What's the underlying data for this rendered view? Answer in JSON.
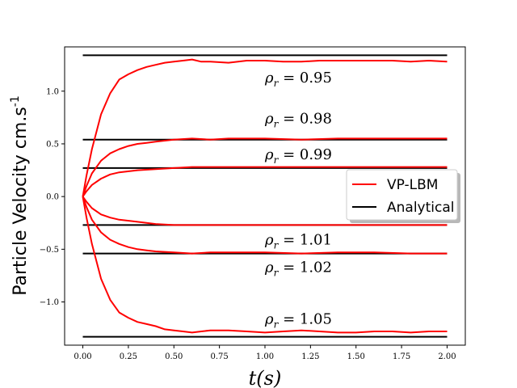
{
  "chart_data": {
    "type": "line",
    "title": "",
    "xlabel": "t(s)",
    "ylabel": "Particle Velocity cm.s",
    "ylabel_exponent": "-1",
    "xlim": [
      -0.1,
      2.1
    ],
    "ylim": [
      -1.41,
      1.42
    ],
    "xticks": [
      "0.00",
      "0.25",
      "0.50",
      "0.75",
      "1.00",
      "1.25",
      "1.50",
      "1.75",
      "2.00"
    ],
    "yticks": [
      "1.0",
      "0.5",
      "0.0",
      "−0.5",
      "−1.0"
    ],
    "legend": {
      "placement": "center-right",
      "entries": [
        {
          "label": "VP-LBM",
          "color": "#ff0000"
        },
        {
          "label": "Analytical",
          "color": "#000000"
        }
      ]
    },
    "annotations": [
      {
        "text": "ρr = 0.95",
        "x": 1.0,
        "y": 1.13
      },
      {
        "text": "ρr = 0.98",
        "x": 1.0,
        "y": 0.74
      },
      {
        "text": "ρr = 0.99",
        "x": 1.0,
        "y": 0.4
      },
      {
        "text": "ρr = 1.01",
        "x": 1.0,
        "y": -0.41
      },
      {
        "text": "ρr = 1.02",
        "x": 1.0,
        "y": -0.67
      },
      {
        "text": "ρr = 1.05",
        "x": 1.0,
        "y": -1.16
      }
    ],
    "series": [
      {
        "legend": "Analytical",
        "color": "#000000",
        "x": [
          0,
          2.0
        ],
        "y": [
          1.34,
          1.34
        ]
      },
      {
        "legend": "Analytical",
        "color": "#000000",
        "x": [
          0,
          2.0
        ],
        "y": [
          0.54,
          0.54
        ]
      },
      {
        "legend": "Analytical",
        "color": "#000000",
        "x": [
          0,
          2.0
        ],
        "y": [
          0.27,
          0.27
        ]
      },
      {
        "legend": "Analytical",
        "color": "#000000",
        "x": [
          0,
          2.0
        ],
        "y": [
          -0.27,
          -0.27
        ]
      },
      {
        "legend": "Analytical",
        "color": "#000000",
        "x": [
          0,
          2.0
        ],
        "y": [
          -0.54,
          -0.54
        ]
      },
      {
        "legend": "Analytical",
        "color": "#000000",
        "x": [
          0,
          2.0
        ],
        "y": [
          -1.33,
          -1.33
        ]
      },
      {
        "legend": "VP-LBM",
        "color": "#ff0000",
        "x": [
          0,
          0.02,
          0.05,
          0.1,
          0.15,
          0.2,
          0.25,
          0.3,
          0.35,
          0.4,
          0.45,
          0.5,
          0.55,
          0.6,
          0.65,
          0.7,
          0.8,
          0.9,
          1.0,
          1.1,
          1.2,
          1.3,
          1.4,
          1.5,
          1.6,
          1.7,
          1.8,
          1.9,
          2.0
        ],
        "y": [
          0,
          0.2,
          0.45,
          0.78,
          0.98,
          1.11,
          1.16,
          1.2,
          1.23,
          1.25,
          1.27,
          1.28,
          1.29,
          1.3,
          1.28,
          1.28,
          1.27,
          1.29,
          1.29,
          1.28,
          1.28,
          1.29,
          1.29,
          1.29,
          1.29,
          1.29,
          1.28,
          1.29,
          1.28
        ]
      },
      {
        "legend": "VP-LBM",
        "color": "#ff0000",
        "x": [
          0,
          0.02,
          0.05,
          0.1,
          0.15,
          0.2,
          0.25,
          0.3,
          0.35,
          0.4,
          0.5,
          0.6,
          0.7,
          0.8,
          1.0,
          1.2,
          1.4,
          1.6,
          1.8,
          2.0
        ],
        "y": [
          0,
          0.1,
          0.22,
          0.34,
          0.41,
          0.45,
          0.48,
          0.5,
          0.51,
          0.52,
          0.54,
          0.55,
          0.54,
          0.55,
          0.55,
          0.54,
          0.55,
          0.55,
          0.55,
          0.55
        ]
      },
      {
        "legend": "VP-LBM",
        "color": "#ff0000",
        "x": [
          0,
          0.02,
          0.05,
          0.1,
          0.15,
          0.2,
          0.3,
          0.4,
          0.5,
          0.6,
          0.8,
          1.0,
          1.2,
          1.4,
          1.6,
          1.8,
          2.0
        ],
        "y": [
          0,
          0.05,
          0.11,
          0.17,
          0.21,
          0.23,
          0.25,
          0.26,
          0.27,
          0.28,
          0.28,
          0.28,
          0.28,
          0.28,
          0.28,
          0.28,
          0.28
        ]
      },
      {
        "legend": "VP-LBM",
        "color": "#ff0000",
        "x": [
          0,
          0.02,
          0.05,
          0.1,
          0.15,
          0.2,
          0.3,
          0.4,
          0.5,
          0.6,
          0.8,
          1.0,
          1.2,
          1.4,
          1.6,
          1.8,
          2.0
        ],
        "y": [
          0,
          -0.05,
          -0.11,
          -0.17,
          -0.2,
          -0.22,
          -0.24,
          -0.26,
          -0.27,
          -0.27,
          -0.27,
          -0.27,
          -0.27,
          -0.27,
          -0.27,
          -0.27,
          -0.27
        ]
      },
      {
        "legend": "VP-LBM",
        "color": "#ff0000",
        "x": [
          0,
          0.02,
          0.05,
          0.1,
          0.15,
          0.2,
          0.25,
          0.3,
          0.35,
          0.4,
          0.5,
          0.6,
          0.7,
          0.8,
          1.0,
          1.2,
          1.4,
          1.6,
          1.8,
          2.0
        ],
        "y": [
          0,
          -0.1,
          -0.22,
          -0.34,
          -0.41,
          -0.45,
          -0.48,
          -0.5,
          -0.51,
          -0.52,
          -0.53,
          -0.54,
          -0.53,
          -0.53,
          -0.53,
          -0.54,
          -0.53,
          -0.53,
          -0.54,
          -0.54
        ]
      },
      {
        "legend": "VP-LBM",
        "color": "#ff0000",
        "x": [
          0,
          0.02,
          0.05,
          0.1,
          0.15,
          0.2,
          0.25,
          0.3,
          0.35,
          0.4,
          0.45,
          0.5,
          0.55,
          0.6,
          0.65,
          0.7,
          0.8,
          0.9,
          1.0,
          1.1,
          1.2,
          1.3,
          1.4,
          1.5,
          1.6,
          1.7,
          1.8,
          1.9,
          2.0
        ],
        "y": [
          0,
          -0.2,
          -0.45,
          -0.78,
          -0.98,
          -1.1,
          -1.15,
          -1.19,
          -1.21,
          -1.23,
          -1.26,
          -1.27,
          -1.28,
          -1.29,
          -1.28,
          -1.27,
          -1.27,
          -1.28,
          -1.29,
          -1.28,
          -1.27,
          -1.28,
          -1.29,
          -1.29,
          -1.28,
          -1.28,
          -1.29,
          -1.28,
          -1.28
        ]
      }
    ]
  }
}
